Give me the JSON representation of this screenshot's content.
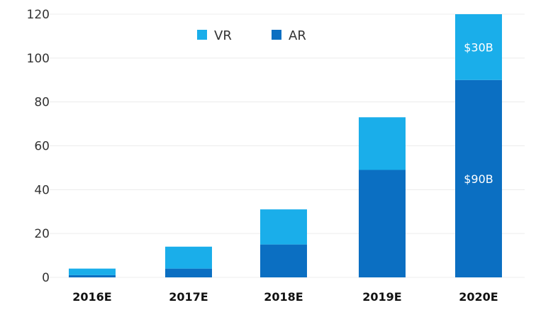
{
  "chart_data": {
    "type": "bar",
    "stacked": true,
    "categories": [
      "2016E",
      "2017E",
      "2018E",
      "2019E",
      "2020E"
    ],
    "series": [
      {
        "name": "AR",
        "color": "#0b6fc2",
        "values": [
          1,
          4,
          15,
          49,
          90
        ]
      },
      {
        "name": "VR",
        "color": "#1aaeea",
        "values": [
          3,
          10,
          16,
          24,
          30
        ]
      }
    ],
    "ylim": [
      0,
      120
    ],
    "yticks": [
      0,
      20,
      40,
      60,
      80,
      100,
      120
    ],
    "grid": true,
    "legend_placement": "top-center",
    "legend_order": [
      "VR",
      "AR"
    ],
    "annotations": [
      {
        "category": "2020E",
        "series": "VR",
        "text": "$30B"
      },
      {
        "category": "2020E",
        "series": "AR",
        "text": "$90B"
      }
    ],
    "title": "",
    "xlabel": "",
    "ylabel": ""
  }
}
